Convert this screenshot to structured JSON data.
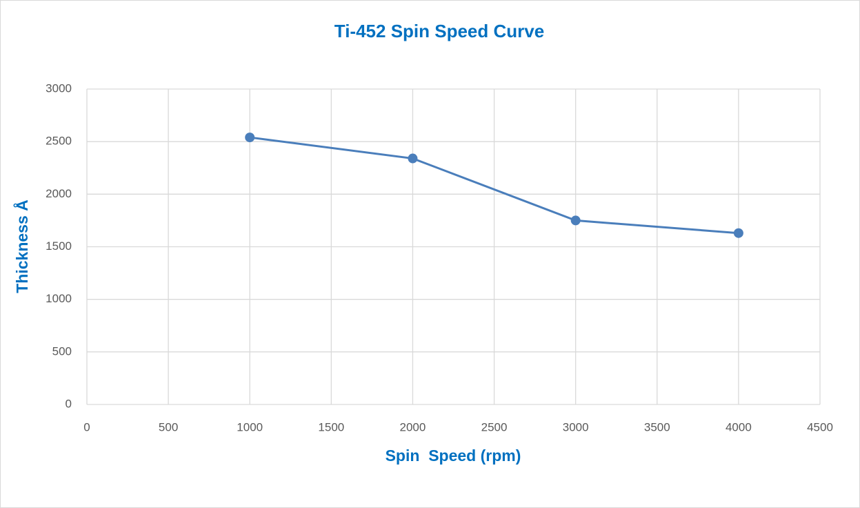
{
  "chart_data": {
    "type": "line",
    "title": "Ti-452 Spin Speed Curve",
    "x_label": "Spin  Speed (rpm)",
    "y_label": "Thickness Å",
    "x": [
      1000,
      2000,
      3000,
      4000
    ],
    "values": [
      2540,
      2340,
      1750,
      1630
    ],
    "color": "#4a7ebb",
    "xlim": [
      0,
      4500
    ],
    "xticks": [
      0,
      500,
      1000,
      1500,
      2000,
      2500,
      3000,
      3500,
      4000,
      4500
    ],
    "ylim": [
      0,
      3000
    ],
    "yticks": [
      0,
      500,
      1000,
      1500,
      2000,
      2500,
      3000
    ],
    "grid": true
  }
}
